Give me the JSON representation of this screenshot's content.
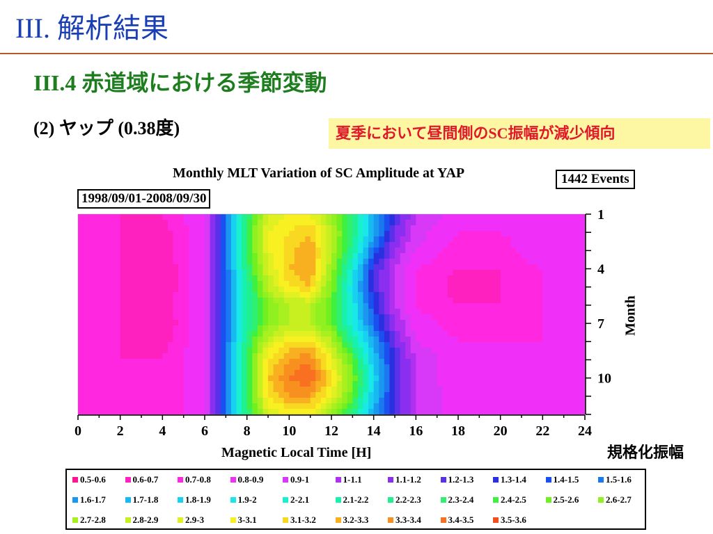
{
  "slide": {
    "title": "III. 解析結果",
    "section": "III.4 赤道域における季節変動",
    "subtitle": "(2) ヤップ (0.38度)",
    "note": "夏季において昼間側のSC振幅が減少傾向",
    "colorbar_label": "規格化振幅"
  },
  "colors": {
    "title": "#1a3fb5",
    "section": "#1e7d1e",
    "note_text": "#e0192a",
    "note_bg": "#fdf6a3",
    "rule": "#b65a23"
  },
  "chart_data": {
    "type": "heatmap",
    "title": "Monthly MLT Variation of SC Amplitude at YAP",
    "events_label": "1442 Events",
    "date_range": "1998/09/01-2008/09/30",
    "xlabel": "Magnetic Local Time [H]",
    "ylabel": "Month",
    "x_ticks": [
      "0",
      "2",
      "4",
      "6",
      "8",
      "10",
      "12",
      "14",
      "16",
      "18",
      "20",
      "22",
      "24"
    ],
    "y_ticks": [
      "1",
      "4",
      "7",
      "10"
    ],
    "xlim": [
      0,
      24
    ],
    "ylim": [
      1,
      12
    ],
    "x": [
      0,
      2,
      4,
      6,
      7,
      8,
      9,
      10,
      11,
      12,
      13,
      14,
      15,
      16,
      18,
      20,
      22,
      24
    ],
    "y": [
      1,
      2,
      3,
      4,
      5,
      6,
      7,
      8,
      9,
      10,
      11,
      12
    ],
    "z": [
      [
        0.8,
        0.7,
        0.7,
        0.9,
        1.5,
        2.3,
        2.9,
        3.0,
        3.0,
        2.7,
        2.3,
        1.7,
        1.3,
        1.0,
        0.85,
        0.85,
        0.85,
        0.8
      ],
      [
        0.8,
        0.7,
        0.65,
        0.9,
        1.5,
        2.4,
        3.0,
        3.1,
        3.2,
        2.8,
        2.3,
        1.7,
        1.2,
        0.95,
        0.8,
        0.8,
        0.85,
        0.8
      ],
      [
        0.8,
        0.7,
        0.65,
        0.9,
        1.5,
        2.4,
        3.0,
        3.15,
        3.3,
        2.8,
        2.2,
        1.5,
        1.1,
        0.9,
        0.75,
        0.75,
        0.9,
        0.8
      ],
      [
        0.8,
        0.7,
        0.6,
        0.9,
        1.5,
        2.3,
        2.9,
        3.2,
        3.3,
        2.7,
        2.0,
        1.3,
        1.0,
        0.8,
        0.7,
        0.7,
        0.8,
        0.8
      ],
      [
        0.8,
        0.7,
        0.6,
        0.9,
        1.5,
        2.2,
        2.8,
        3.1,
        3.2,
        2.6,
        1.9,
        1.3,
        1.0,
        0.8,
        0.65,
        0.7,
        0.8,
        0.8
      ],
      [
        0.8,
        0.7,
        0.65,
        0.9,
        1.5,
        2.2,
        2.6,
        2.8,
        2.8,
        2.5,
        2.0,
        1.4,
        1.0,
        0.8,
        0.7,
        0.7,
        0.8,
        0.8
      ],
      [
        0.8,
        0.7,
        0.6,
        0.9,
        1.5,
        2.2,
        2.6,
        2.8,
        2.8,
        2.5,
        2.0,
        1.5,
        1.1,
        0.85,
        0.75,
        0.75,
        0.8,
        0.8
      ],
      [
        0.8,
        0.7,
        0.65,
        0.9,
        1.5,
        2.3,
        2.9,
        3.1,
        3.1,
        2.8,
        2.2,
        1.7,
        1.2,
        0.9,
        0.8,
        0.8,
        0.8,
        0.8
      ],
      [
        0.8,
        0.7,
        0.7,
        0.9,
        1.5,
        2.4,
        3.1,
        3.3,
        3.4,
        3.0,
        2.5,
        1.8,
        1.3,
        1.0,
        0.8,
        0.8,
        0.8,
        0.8
      ],
      [
        0.8,
        0.7,
        0.7,
        0.9,
        1.5,
        2.4,
        3.2,
        3.4,
        3.5,
        3.1,
        2.6,
        1.9,
        1.3,
        1.0,
        0.8,
        0.8,
        0.8,
        0.8
      ],
      [
        0.8,
        0.7,
        0.7,
        0.9,
        1.5,
        2.4,
        3.1,
        3.3,
        3.3,
        3.0,
        2.5,
        1.8,
        1.3,
        1.0,
        0.85,
        0.8,
        0.8,
        0.8
      ],
      [
        0.8,
        0.7,
        0.7,
        0.9,
        1.5,
        2.3,
        2.9,
        3.0,
        3.0,
        2.7,
        2.3,
        1.7,
        1.3,
        1.0,
        0.85,
        0.8,
        0.8,
        0.8
      ]
    ],
    "legend": [
      {
        "label": "0.5-0.6",
        "color": "#ff1493"
      },
      {
        "label": "0.6-0.7",
        "color": "#ff20c0"
      },
      {
        "label": "0.7-0.8",
        "color": "#ff28e0"
      },
      {
        "label": "0.8-0.9",
        "color": "#f030f8"
      },
      {
        "label": "0.9-1",
        "color": "#d838f8"
      },
      {
        "label": "1-1.1",
        "color": "#b030f0"
      },
      {
        "label": "1.1-1.2",
        "color": "#8a2ff0"
      },
      {
        "label": "1.2-1.3",
        "color": "#5a30e8"
      },
      {
        "label": "1.3-1.4",
        "color": "#2a30e0"
      },
      {
        "label": "1.4-1.5",
        "color": "#1a50f0"
      },
      {
        "label": "1.5-1.6",
        "color": "#1a78f0"
      },
      {
        "label": "1.6-1.7",
        "color": "#1a98f0"
      },
      {
        "label": "1.7-1.8",
        "color": "#18b8f0"
      },
      {
        "label": "1.8-1.9",
        "color": "#18d0f0"
      },
      {
        "label": "1.9-2",
        "color": "#18e8e8"
      },
      {
        "label": "2-2.1",
        "color": "#18f0d0"
      },
      {
        "label": "2.1-2.2",
        "color": "#18f0b0"
      },
      {
        "label": "2.2-2.3",
        "color": "#20f090"
      },
      {
        "label": "2.3-2.4",
        "color": "#30f070"
      },
      {
        "label": "2.4-2.5",
        "color": "#40f040"
      },
      {
        "label": "2.5-2.6",
        "color": "#70f020"
      },
      {
        "label": "2.6-2.7",
        "color": "#90f020"
      },
      {
        "label": "2.7-2.8",
        "color": "#a8f020"
      },
      {
        "label": "2.8-2.9",
        "color": "#c8f020"
      },
      {
        "label": "2.9-3",
        "color": "#e0f020"
      },
      {
        "label": "3-3.1",
        "color": "#f8f020"
      },
      {
        "label": "3.1-3.2",
        "color": "#f8d820"
      },
      {
        "label": "3.2-3.3",
        "color": "#f8b020"
      },
      {
        "label": "3.3-3.4",
        "color": "#f89020"
      },
      {
        "label": "3.4-3.5",
        "color": "#f87020"
      },
      {
        "label": "3.5-3.6",
        "color": "#f05020"
      }
    ]
  }
}
